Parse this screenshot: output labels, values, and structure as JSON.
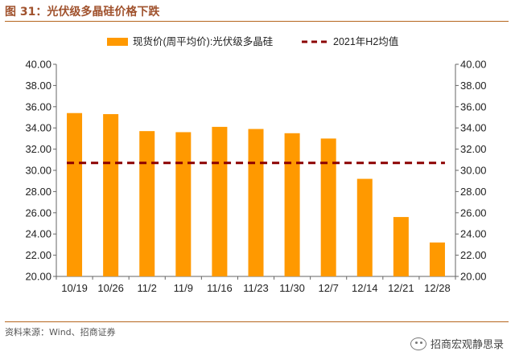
{
  "figure": {
    "title": "图 31：光伏级多晶硅价格下跌",
    "source": "资料来源：Wind、招商证券",
    "watermark": "招商宏观静思录"
  },
  "colors": {
    "bar": "#ff9900",
    "reference_line": "#8b0000",
    "title": "#a0522d",
    "rule": "#b5651d"
  },
  "chart_data": {
    "type": "bar",
    "categories": [
      "10/19",
      "10/26",
      "11/2",
      "11/9",
      "11/16",
      "11/23",
      "11/30",
      "12/7",
      "12/14",
      "12/21",
      "12/28"
    ],
    "series": [
      {
        "name": "现货价(周平均价):光伏级多晶硅",
        "type": "bar",
        "values": [
          35.4,
          35.3,
          33.7,
          33.6,
          34.1,
          33.9,
          33.5,
          33.0,
          29.2,
          25.6,
          23.2
        ]
      },
      {
        "name": "2021年H2均值",
        "type": "dashed-line",
        "value": 30.7
      }
    ],
    "ylim": [
      20,
      40
    ],
    "yticks": [
      "20.00",
      "22.00",
      "24.00",
      "26.00",
      "28.00",
      "30.00",
      "32.00",
      "34.00",
      "36.00",
      "38.00",
      "40.00"
    ],
    "y_axes": "left and right (same scale)",
    "legend_position": "top",
    "grid": false
  }
}
